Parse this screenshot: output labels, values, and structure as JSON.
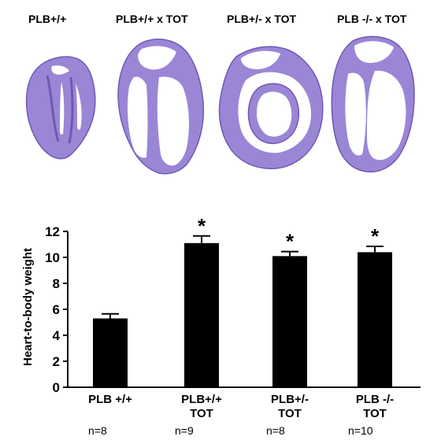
{
  "panels": [
    {
      "label": "PLB+/+"
    },
    {
      "label": "PLB+/+ x TOT"
    },
    {
      "label": "PLB+/- x TOT"
    },
    {
      "label": "PLB -/- x TOT"
    }
  ],
  "colors": {
    "tissue": "#9b86d6",
    "tissue_dark": "#6f58b4",
    "bar": "#000000"
  },
  "chart_data": {
    "type": "bar",
    "categories": [
      [
        "PLB +/+"
      ],
      [
        "PLB+/+",
        "TOT"
      ],
      [
        "PLB+/-",
        "TOT"
      ],
      [
        "PLB -/-",
        "TOT"
      ]
    ],
    "values": [
      5.3,
      11.1,
      10.1,
      10.4
    ],
    "errors": [
      0.35,
      0.55,
      0.35,
      0.45
    ],
    "significance": [
      "",
      "*",
      "*",
      "*"
    ],
    "sample_sizes": [
      "n=8",
      "n=9",
      "n=8",
      "n=10"
    ],
    "ylabel": "Heart-to-body weight",
    "yticks": [
      0,
      2,
      4,
      6,
      8,
      10,
      12
    ],
    "ylim": [
      0,
      12
    ],
    "grid": false,
    "legend": "none"
  }
}
